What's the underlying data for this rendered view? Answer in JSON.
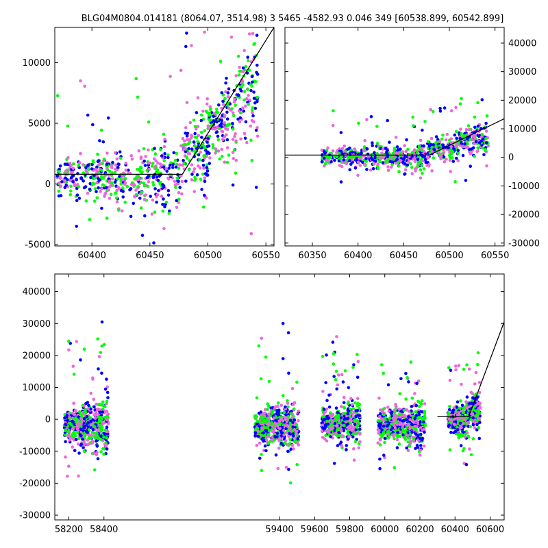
{
  "title": "BLG04M0804.014181 (8064.07, 3514.98)  3 5465 -4582.93 0.046 349 [60538.899, 60542.899]",
  "colors": {
    "series_a": "#0000ff",
    "series_b": "#00ff00",
    "series_c": "#ee66dd",
    "model": "#000000"
  },
  "chart_data": [
    {
      "id": "zoom-left",
      "type": "scatter",
      "xlim": [
        60368,
        60557
      ],
      "ylim": [
        -5100,
        12900
      ],
      "xticks": [
        60400,
        60450,
        60500,
        60550
      ],
      "yticks": [
        -5000,
        0,
        5000,
        10000
      ],
      "ytick_side": "left",
      "model_line": [
        [
          60368,
          800
        ],
        [
          60478,
          800
        ],
        [
          60557,
          12900
        ]
      ],
      "clusters": [
        {
          "x": [
            60370,
            60478
          ],
          "center": 500,
          "spread": 1400,
          "n": 520
        },
        {
          "x": [
            60478,
            60500
          ],
          "center": 2600,
          "spread": 2200,
          "n": 150
        },
        {
          "x": [
            60500,
            60525
          ],
          "center": 4800,
          "spread": 2000,
          "n": 160
        },
        {
          "x": [
            60525,
            60543
          ],
          "center": 7500,
          "spread": 3200,
          "n": 110
        }
      ]
    },
    {
      "id": "zoom-right",
      "type": "scatter",
      "xlim": [
        60320,
        60560
      ],
      "ylim": [
        -31000,
        45500
      ],
      "xticks": [
        60350,
        60400,
        60450,
        60500,
        60550
      ],
      "yticks": [
        -30000,
        -20000,
        -10000,
        0,
        10000,
        20000,
        30000,
        40000
      ],
      "ytick_side": "right",
      "model_line": [
        [
          60320,
          800
        ],
        [
          60478,
          800
        ],
        [
          60560,
          13500
        ]
      ],
      "clusters": [
        {
          "x": [
            60360,
            60478
          ],
          "center": 0,
          "spread": 2500,
          "n": 520
        },
        {
          "x": [
            60478,
            60510
          ],
          "center": 3000,
          "spread": 2500,
          "n": 170
        },
        {
          "x": [
            60510,
            60543
          ],
          "center": 6000,
          "spread": 3500,
          "n": 170
        }
      ]
    },
    {
      "id": "full-lightcurve",
      "type": "scatter",
      "xlim": [
        58120,
        60680
      ],
      "ylim": [
        -31500,
        45500
      ],
      "xticks": [
        58200,
        58400,
        59400,
        59600,
        59800,
        60000,
        60200,
        60400,
        60600
      ],
      "yticks": [
        -30000,
        -20000,
        -10000,
        0,
        10000,
        20000,
        30000,
        40000
      ],
      "ytick_side": "left",
      "model_line": [
        [
          60300,
          800
        ],
        [
          60478,
          800
        ],
        [
          60680,
          30500
        ]
      ],
      "clusters": [
        {
          "x": [
            58175,
            58425
          ],
          "center": -2000,
          "spread": 4500,
          "n": 560
        },
        {
          "x": [
            59260,
            59510
          ],
          "center": -2500,
          "spread": 4200,
          "n": 560
        },
        {
          "x": [
            59640,
            59860
          ],
          "center": -1500,
          "spread": 3500,
          "n": 480
        },
        {
          "x": [
            59960,
            60230
          ],
          "center": -1800,
          "spread": 3800,
          "n": 540
        },
        {
          "x": [
            60360,
            60478
          ],
          "center": -300,
          "spread": 3000,
          "n": 300
        },
        {
          "x": [
            60478,
            60543
          ],
          "center": 3000,
          "spread": 3500,
          "n": 240
        }
      ]
    }
  ]
}
